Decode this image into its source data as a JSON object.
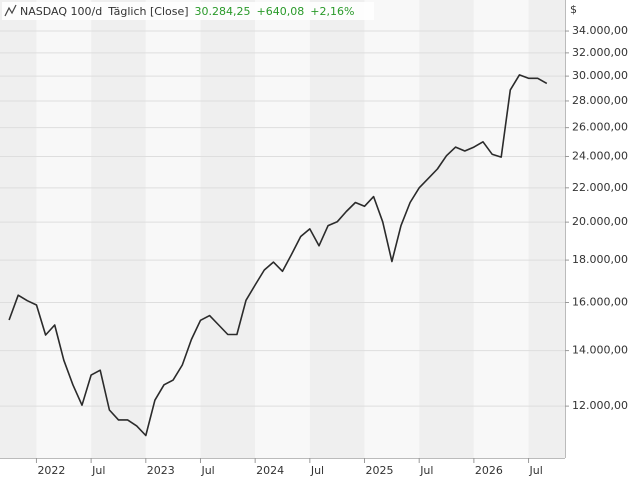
{
  "chart_data": {
    "type": "line",
    "title": "NASDAQ 100/d",
    "subtitle": "Täglich [Close]",
    "last_value": "30.284,25",
    "change": "+640,08",
    "change_pct": "+2,16%",
    "y_unit": "$",
    "log_scale": true,
    "grid": true,
    "x": [
      "2021-10",
      "2021-11",
      "2021-12",
      "2022-01",
      "2022-02",
      "2022-03",
      "2022-04",
      "2022-05",
      "2022-06",
      "2022-07",
      "2022-08",
      "2022-09",
      "2022-10",
      "2022-11",
      "2022-12",
      "2023-01",
      "2023-02",
      "2023-03",
      "2023-04",
      "2023-05",
      "2023-06",
      "2023-07",
      "2023-08",
      "2023-09",
      "2023-10",
      "2023-11",
      "2023-12",
      "2024-01",
      "2024-02",
      "2024-03",
      "2024-04",
      "2024-05",
      "2024-06",
      "2024-07",
      "2024-08",
      "2024-09",
      "2024-10",
      "2024-11",
      "2024-12",
      "2025-01",
      "2025-02",
      "2025-03",
      "2025-04",
      "2025-05",
      "2025-06",
      "2025-07",
      "2025-08",
      "2025-09",
      "2025-10",
      "2025-11",
      "2025-12",
      "2026-01",
      "2026-02",
      "2026-03",
      "2026-04",
      "2026-05",
      "2026-06",
      "2026-07",
      "2026-08",
      "2026-09"
    ],
    "series": [
      {
        "name": "NASDAQ 100",
        "color": "#2b2b2b",
        "values": [
          15240,
          16330,
          16080,
          15890,
          14620,
          15030,
          13630,
          12730,
          12030,
          13080,
          13260,
          11870,
          11550,
          11550,
          11360,
          11060,
          12200,
          12730,
          12900,
          13450,
          14440,
          15230,
          15430,
          15030,
          14640,
          14640,
          16100,
          16800,
          17510,
          17900,
          17450,
          18290,
          19220,
          19630,
          18730,
          19810,
          20020,
          20600,
          21120,
          20900,
          21470,
          20020,
          17930,
          19810,
          21120,
          22000,
          22580,
          23180,
          24050,
          24630,
          24370,
          24630,
          25000,
          24150,
          23960,
          28870,
          30100,
          29820,
          29820,
          29400
        ]
      }
    ],
    "xlim": [
      "2021-09",
      "2026-11"
    ],
    "xticks": [
      {
        "value": "2022-01",
        "label": "2022"
      },
      {
        "value": "2022-07",
        "label": "Jul"
      },
      {
        "value": "2023-01",
        "label": "2023"
      },
      {
        "value": "2023-07",
        "label": "Jul"
      },
      {
        "value": "2024-01",
        "label": "2024"
      },
      {
        "value": "2024-07",
        "label": "Jul"
      },
      {
        "value": "2025-01",
        "label": "2025"
      },
      {
        "value": "2025-07",
        "label": "Jul"
      },
      {
        "value": "2026-01",
        "label": "2026"
      },
      {
        "value": "2026-07",
        "label": "Jul"
      }
    ],
    "ylim": [
      10390,
      37060
    ],
    "yticks": [
      {
        "value": 12000,
        "label": "12.000,00"
      },
      {
        "value": 14000,
        "label": "14.000,00"
      },
      {
        "value": 16000,
        "label": "16.000,00"
      },
      {
        "value": 18000,
        "label": "18.000,00"
      },
      {
        "value": 20000,
        "label": "20.000,00"
      },
      {
        "value": 22000,
        "label": "22.000,00"
      },
      {
        "value": 24000,
        "label": "24.000,00"
      },
      {
        "value": 26000,
        "label": "26.000,00"
      },
      {
        "value": 28000,
        "label": "28.000,00"
      },
      {
        "value": 30000,
        "label": "30.000,00"
      },
      {
        "value": 32000,
        "label": "32.000,00"
      },
      {
        "value": 34000,
        "label": "34.000,00"
      }
    ]
  }
}
